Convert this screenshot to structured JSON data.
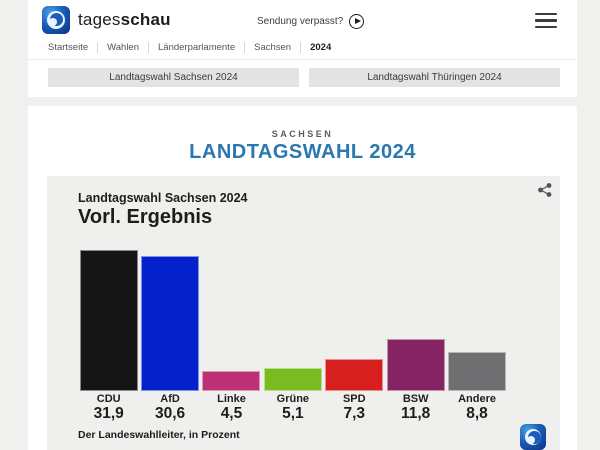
{
  "colors": {
    "accent_blue": "#2b77b0",
    "page_bg": "#f0f0ef",
    "card_bg": "#efefee",
    "button_bg": "#e3e3e2"
  },
  "header": {
    "brand_regular": "tages",
    "brand_bold": "schau",
    "sendung_link": "Sendung verpasst?",
    "breadcrumb": [
      "Startseite",
      "Wahlen",
      "Länderparlamente",
      "Sachsen",
      "2024"
    ],
    "nav_buttons": {
      "sachsen": "Landtagswahl Sachsen 2024",
      "thueringen": "Landtagswahl Thüringen 2024"
    }
  },
  "page": {
    "kicker": "SACHSEN",
    "title": "LANDTAGSWAHL 2024"
  },
  "chart_card": {
    "subtitle": "Landtagswahl Sachsen 2024",
    "title": "Vorl. Ergebnis",
    "source": "Der Landeswahlleiter, in Prozent"
  },
  "chart_data": {
    "type": "bar",
    "title": "Vorl. Ergebnis",
    "subtitle": "Landtagswahl Sachsen 2024",
    "categories": [
      "CDU",
      "AfD",
      "Linke",
      "Grüne",
      "SPD",
      "BSW",
      "Andere"
    ],
    "values": [
      31.9,
      30.6,
      4.5,
      5.1,
      7.3,
      11.8,
      8.8
    ],
    "value_labels": [
      "31,9",
      "30,6",
      "4,5",
      "5,1",
      "7,3",
      "11,8",
      "8,8"
    ],
    "bar_colors": [
      "#151515",
      "#0521cb",
      "#be3075",
      "#78bc1f",
      "#d71f1f",
      "#862363",
      "#6f6f71"
    ],
    "unit": "Prozent",
    "source": "Der Landeswahlleiter, in Prozent",
    "xlabel": "",
    "ylabel": "",
    "ylim": [
      0,
      33
    ],
    "grid": false,
    "legend": false
  }
}
